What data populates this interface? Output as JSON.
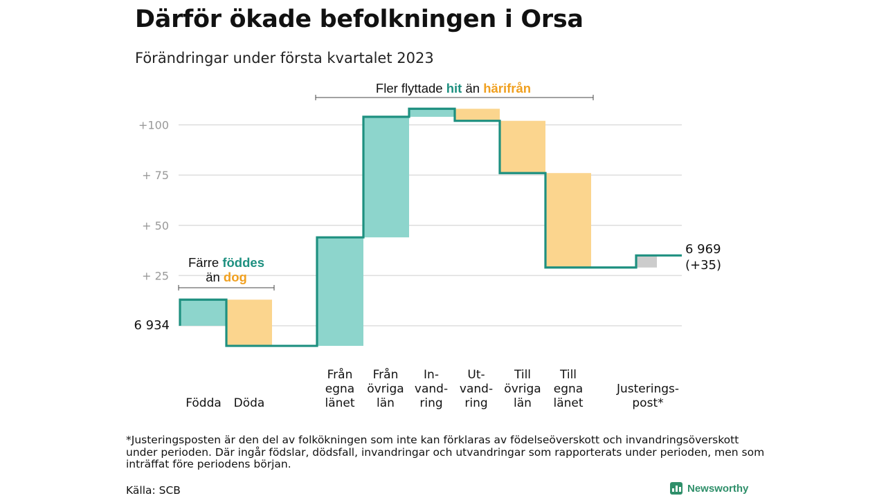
{
  "header": {
    "title": "Därför ökade befolkningen i Orsa",
    "subtitle": "Förändringar under första kvartalet 2023"
  },
  "chart_data": {
    "type": "waterfall",
    "title": "Därför ökade befolkningen i Orsa",
    "subtitle": "Förändringar under första kvartalet 2023",
    "start_value": 6934,
    "start_label": "6 934",
    "end_value": 6969,
    "end_label": "6 969",
    "end_change_label": "(+35)",
    "y_ticks": [
      {
        "value": 25,
        "label": "+ 25"
      },
      {
        "value": 50,
        "label": "+ 50"
      },
      {
        "value": 75,
        "label": "+ 75"
      },
      {
        "value": 100,
        "label": "+100"
      }
    ],
    "y_range": [
      -10,
      110
    ],
    "steps": [
      {
        "lines": [
          "Födda"
        ],
        "change": 13,
        "kind": "plus"
      },
      {
        "lines": [
          "Döda"
        ],
        "change": -23,
        "kind": "minus"
      },
      {
        "lines": [
          "Från",
          "egna",
          "länet"
        ],
        "change": 54,
        "kind": "plus"
      },
      {
        "lines": [
          "Från",
          "övriga",
          "län"
        ],
        "change": 60,
        "kind": "plus"
      },
      {
        "lines": [
          "In-",
          "vand-",
          "ring"
        ],
        "change": 4,
        "kind": "plus"
      },
      {
        "lines": [
          "Ut-",
          "vand-",
          "ring"
        ],
        "change": -6,
        "kind": "minus"
      },
      {
        "lines": [
          "Till",
          "övriga",
          "län"
        ],
        "change": -26,
        "kind": "minus"
      },
      {
        "lines": [
          "Till",
          "egna",
          "länet"
        ],
        "change": -47,
        "kind": "minus"
      },
      {
        "lines": [
          "Justerings-",
          "post*"
        ],
        "change": 6,
        "kind": "adjust"
      }
    ],
    "annotations": {
      "births": {
        "line1": "Färre ",
        "line1_em": "föddes",
        "line2": "än ",
        "line2_em": "dog"
      },
      "migration": {
        "pre": "Fler flyttade ",
        "em1": "hit",
        "mid": " än ",
        "em2": "härifrån"
      }
    },
    "colors": {
      "line": "#1e9080",
      "plus": "#8dd5cc",
      "minus": "#fbd58e",
      "adjust": "#cccccc",
      "accent_green": "#1e9080",
      "accent_orange": "#f0a020",
      "grid": "#dddddd",
      "tick_text": "#999999"
    }
  },
  "footnote": "*Justeringsposten är den del av folkökningen som inte kan förklaras av födelseöverskott och invandringsöverskott under perioden. Där ingår födslar, dödsfall, invandringar och utvandringar som rapporterats under perioden, men som inträffat före periodens början.",
  "source": "Källa: SCB",
  "brand": {
    "name": "Newsworthy",
    "color": "#2f8f6a"
  }
}
